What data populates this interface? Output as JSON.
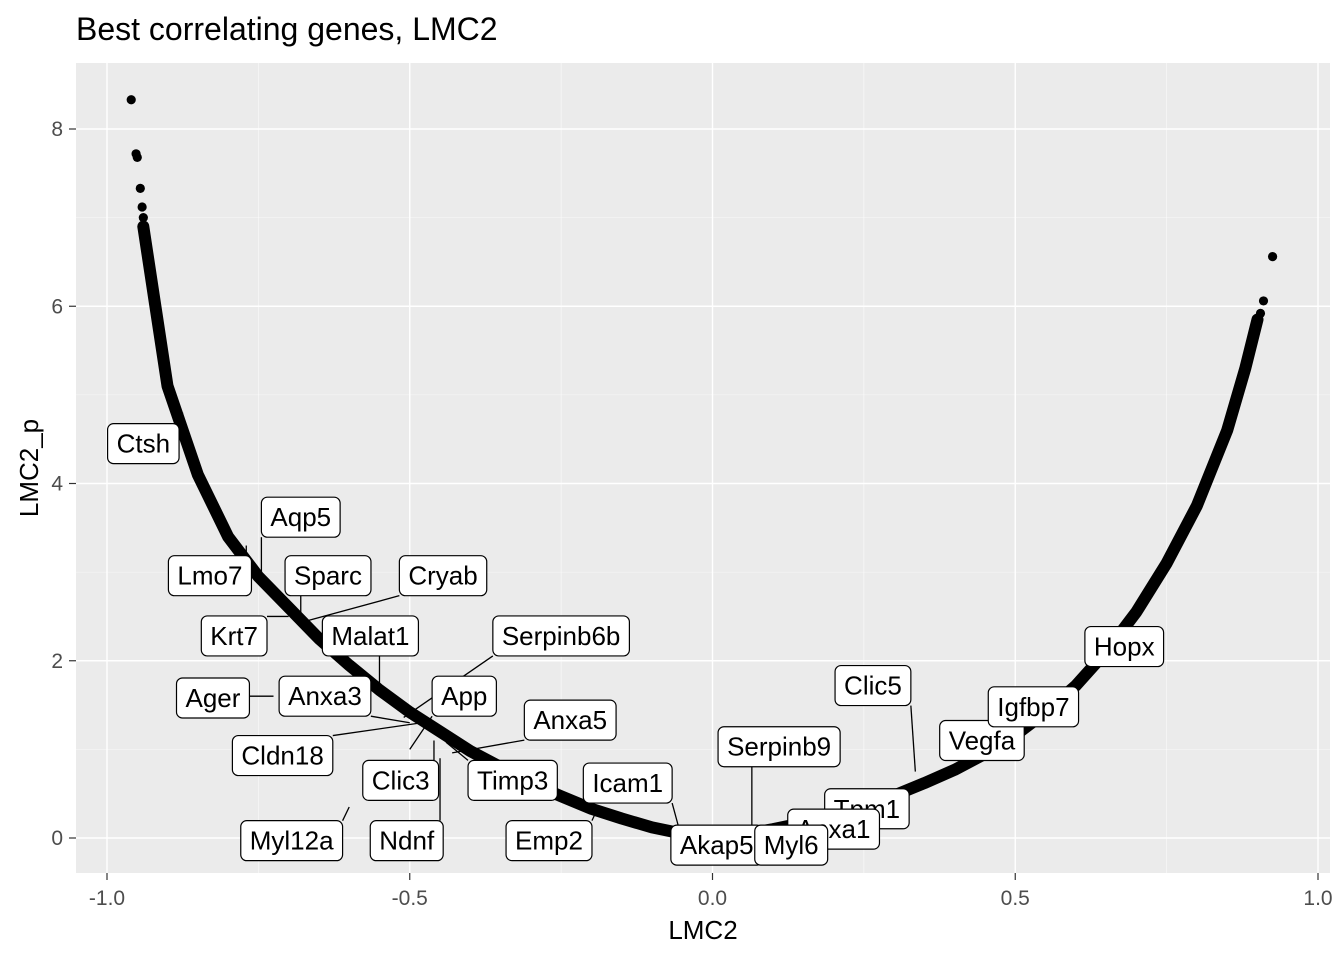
{
  "chart_data": {
    "type": "scatter",
    "title": "Best correlating genes, LMC2",
    "xlabel": "LMC2",
    "ylabel": "LMC2_p",
    "xlim": [
      -1.1,
      1.02
    ],
    "ylim": [
      -0.4,
      8.75
    ],
    "x_ticks": [
      -1.0,
      -0.5,
      0.0,
      0.5,
      1.0
    ],
    "x_tick_labels": [
      "-1.0",
      "-0.5",
      "0.0",
      "0.5",
      "1.0"
    ],
    "y_ticks": [
      0,
      2,
      4,
      6,
      8
    ],
    "y_tick_labels": [
      "0",
      "2",
      "4",
      "6",
      "8"
    ],
    "grid": true,
    "background": "#ebebeb",
    "point_color": "#000000",
    "curve": {
      "description_of_dense_band_not_needed": null,
      "neg_branch": [
        [
          -0.94,
          6.9
        ],
        [
          -0.92,
          6.0
        ],
        [
          -0.9,
          5.1
        ],
        [
          -0.85,
          4.1
        ],
        [
          -0.8,
          3.4
        ],
        [
          -0.75,
          2.95
        ],
        [
          -0.7,
          2.6
        ],
        [
          -0.65,
          2.25
        ],
        [
          -0.6,
          1.95
        ],
        [
          -0.55,
          1.67
        ],
        [
          -0.5,
          1.42
        ],
        [
          -0.45,
          1.2
        ],
        [
          -0.4,
          0.98
        ],
        [
          -0.35,
          0.8
        ],
        [
          -0.3,
          0.62
        ],
        [
          -0.25,
          0.47
        ],
        [
          -0.2,
          0.33
        ],
        [
          -0.15,
          0.22
        ],
        [
          -0.1,
          0.12
        ],
        [
          -0.05,
          0.05
        ],
        [
          0.0,
          0.0
        ]
      ],
      "pos_branch": [
        [
          0.0,
          0.0
        ],
        [
          0.05,
          0.04
        ],
        [
          0.1,
          0.1
        ],
        [
          0.15,
          0.17
        ],
        [
          0.2,
          0.26
        ],
        [
          0.25,
          0.36
        ],
        [
          0.3,
          0.48
        ],
        [
          0.35,
          0.62
        ],
        [
          0.4,
          0.77
        ],
        [
          0.45,
          0.95
        ],
        [
          0.5,
          1.16
        ],
        [
          0.55,
          1.42
        ],
        [
          0.6,
          1.72
        ],
        [
          0.65,
          2.1
        ],
        [
          0.7,
          2.55
        ],
        [
          0.75,
          3.1
        ],
        [
          0.8,
          3.75
        ],
        [
          0.85,
          4.6
        ],
        [
          0.88,
          5.3
        ],
        [
          0.9,
          5.85
        ]
      ]
    },
    "outlier_points": [
      {
        "x": -0.96,
        "y": 8.33
      },
      {
        "x": -0.952,
        "y": 7.72
      },
      {
        "x": -0.95,
        "y": 7.68
      },
      {
        "x": -0.945,
        "y": 7.33
      },
      {
        "x": -0.942,
        "y": 7.12
      },
      {
        "x": -0.94,
        "y": 7.0
      },
      {
        "x": 0.905,
        "y": 5.92
      },
      {
        "x": 0.91,
        "y": 6.06
      },
      {
        "x": 0.925,
        "y": 6.56
      }
    ],
    "labels": [
      {
        "gene": "Ctsh",
        "x": -0.94,
        "y": 4.45,
        "px": -0.875,
        "py": 4.8
      },
      {
        "gene": "Aqp5",
        "x": -0.68,
        "y": 3.62,
        "px": -0.745,
        "py": 2.95
      },
      {
        "gene": "Lmo7",
        "x": -0.83,
        "y": 2.96,
        "px": -0.77,
        "py": 3.3
      },
      {
        "gene": "Sparc",
        "x": -0.635,
        "y": 2.96,
        "px": -0.68,
        "py": 2.45
      },
      {
        "gene": "Cryab",
        "x": -0.445,
        "y": 2.96,
        "px": -0.67,
        "py": 2.45
      },
      {
        "gene": "Krt7",
        "x": -0.79,
        "y": 2.28,
        "px": -0.7,
        "py": 2.5
      },
      {
        "gene": "Malat1",
        "x": -0.565,
        "y": 2.28,
        "px": -0.55,
        "py": 1.7
      },
      {
        "gene": "Serpinb6b",
        "x": -0.25,
        "y": 2.28,
        "px": -0.51,
        "py": 1.36
      },
      {
        "gene": "Ager",
        "x": -0.825,
        "y": 1.58,
        "px": -0.725,
        "py": 1.6
      },
      {
        "gene": "Anxa3",
        "x": -0.64,
        "y": 1.6,
        "px": -0.5,
        "py": 1.3
      },
      {
        "gene": "App",
        "x": -0.41,
        "y": 1.6,
        "px": -0.5,
        "py": 1.0
      },
      {
        "gene": "Anxa5",
        "x": -0.235,
        "y": 1.33,
        "px": -0.43,
        "py": 0.96
      },
      {
        "gene": "Cldn18",
        "x": -0.71,
        "y": 0.93,
        "px": -0.47,
        "py": 1.31
      },
      {
        "gene": "Clic3",
        "x": -0.515,
        "y": 0.65,
        "px": -0.46,
        "py": 1.1
      },
      {
        "gene": "Timp3",
        "x": -0.33,
        "y": 0.65,
        "px": -0.44,
        "py": 1.08
      },
      {
        "gene": "Icam1",
        "x": -0.14,
        "y": 0.62,
        "px": -0.055,
        "py": 0.1
      },
      {
        "gene": "Myl12a",
        "x": -0.695,
        "y": -0.03,
        "px": -0.6,
        "py": 0.35
      },
      {
        "gene": "Ndnf",
        "x": -0.505,
        "y": -0.03,
        "px": -0.45,
        "py": 0.9
      },
      {
        "gene": "Emp2",
        "x": -0.27,
        "y": -0.03,
        "px": -0.19,
        "py": 0.33
      },
      {
        "gene": "Akap5",
        "x": 0.007,
        "y": -0.08,
        "px": 0.0,
        "py": 0.0
      },
      {
        "gene": "Serpinb9",
        "x": 0.11,
        "y": 1.03,
        "px": 0.065,
        "py": 0.08
      },
      {
        "gene": "Clic5",
        "x": 0.265,
        "y": 1.72,
        "px": 0.335,
        "py": 0.75
      },
      {
        "gene": "Tpm1",
        "x": 0.255,
        "y": 0.33,
        "px": 0.235,
        "py": 0.3
      },
      {
        "gene": "Anxa1",
        "x": 0.2,
        "y": 0.1,
        "px": 0.16,
        "py": 0.13
      },
      {
        "gene": "Myl6",
        "x": 0.13,
        "y": -0.08,
        "px": 0.12,
        "py": 0.06
      },
      {
        "gene": "Vegfa",
        "x": 0.445,
        "y": 1.1,
        "px": 0.4,
        "py": 0.88
      },
      {
        "gene": "Igfbp7",
        "x": 0.53,
        "y": 1.48,
        "px": 0.5,
        "py": 1.16
      },
      {
        "gene": "Hopx",
        "x": 0.68,
        "y": 2.16,
        "px": 0.65,
        "py": 2.06
      }
    ]
  }
}
